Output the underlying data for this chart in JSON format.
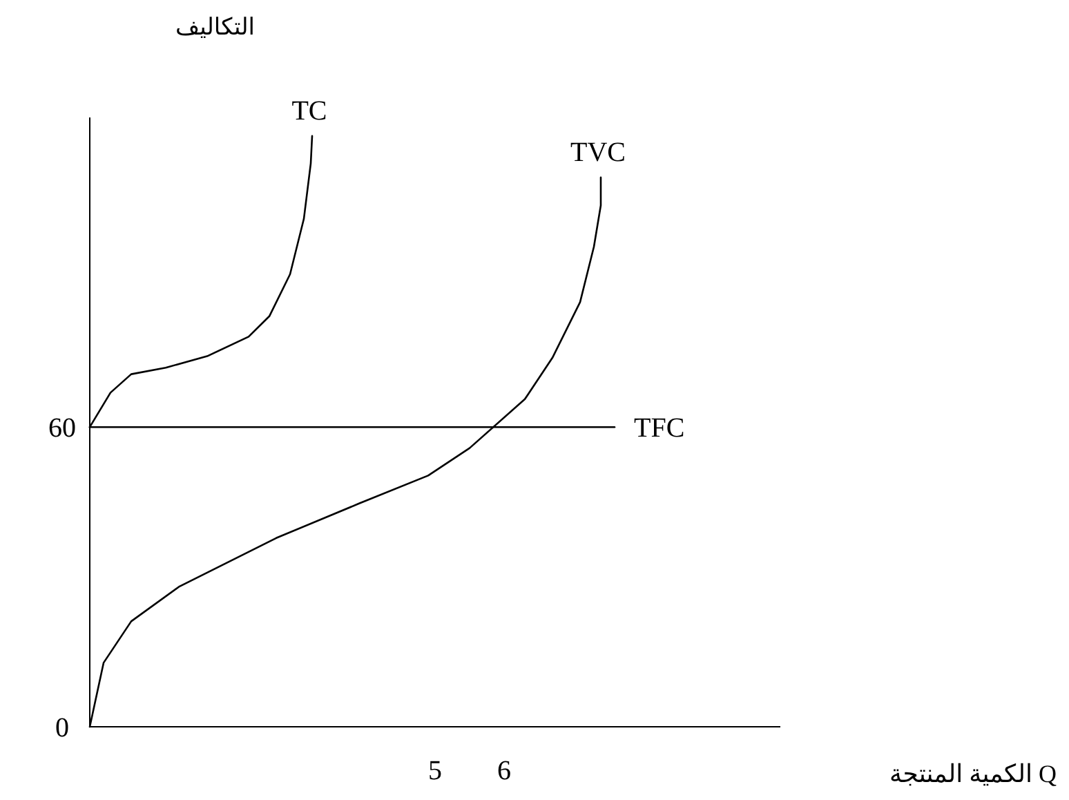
{
  "chart_data": {
    "type": "line",
    "xlabel": "الكمية المنتجة Q",
    "ylabel": "التكاليف",
    "xlim": [
      0,
      10
    ],
    "ylim": [
      0,
      122
    ],
    "xticks": [
      5,
      6
    ],
    "yticks": [
      0,
      60
    ],
    "series": [
      {
        "name": "TC",
        "color": "#000000",
        "x": [
          0,
          0.3,
          0.6,
          1.1,
          1.7,
          2.3,
          2.6,
          2.9,
          3.1,
          3.2,
          3.22
        ],
        "values": [
          60,
          66.9,
          70.6,
          71.9,
          74.2,
          78.1,
          82.2,
          90.6,
          101.7,
          112.8,
          118.3
        ]
      },
      {
        "name": "TVC",
        "color": "#000000",
        "x": [
          0,
          0.2,
          0.6,
          1.3,
          2.7,
          3.9,
          4.9,
          5.5,
          6.3,
          6.7,
          7.1,
          7.3,
          7.4,
          7.4
        ],
        "values": [
          0,
          12.8,
          21.1,
          28.1,
          37.8,
          44.7,
          50.3,
          55.8,
          65.6,
          73.9,
          85,
          96.1,
          104.4,
          110
        ]
      },
      {
        "name": "TFC",
        "color": "#000000",
        "x": [
          0,
          7.6
        ],
        "values": [
          60,
          60
        ]
      }
    ]
  }
}
